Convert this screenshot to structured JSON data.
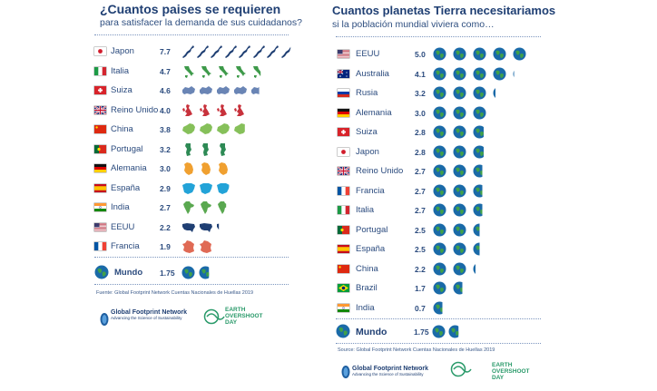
{
  "colors": {
    "title": "#1f3f73",
    "earth_ocean": "#1a6aa8",
    "earth_land": "#3fa04a",
    "japan": "#1f3f73",
    "italy": "#3e9a4a",
    "switzerland": "#6a85b5",
    "uk": "#c8323c",
    "china": "#86c05a",
    "portugal": "#2e8a55",
    "germany": "#f0a030",
    "spain": "#23a3d8",
    "india": "#5aa850",
    "usa": "#1f3f73",
    "france": "#e06a55",
    "eod_green": "#2a9a6a"
  },
  "left": {
    "title": "¿Cuantos paises se requieren",
    "subtitle": "para satisfacer la demanda de sus cuidadanos?",
    "rows": [
      {
        "country": "Japon",
        "value": "7.7",
        "flag": "jp",
        "icon": "japan-icon",
        "color": "japan"
      },
      {
        "country": "Italia",
        "value": "4.7",
        "flag": "it",
        "icon": "italy-icon",
        "color": "italy"
      },
      {
        "country": "Suiza",
        "value": "4.6",
        "flag": "ch",
        "icon": "switzerland-icon",
        "color": "switzerland"
      },
      {
        "country": "Reino Unido",
        "value": "4.0",
        "flag": "gb",
        "icon": "uk-icon",
        "color": "uk"
      },
      {
        "country": "China",
        "value": "3.8",
        "flag": "cn",
        "icon": "china-icon",
        "color": "china"
      },
      {
        "country": "Portugal",
        "value": "3.2",
        "flag": "pt",
        "icon": "portugal-icon",
        "color": "portugal"
      },
      {
        "country": "Alemania",
        "value": "3.0",
        "flag": "de",
        "icon": "germany-icon",
        "color": "germany"
      },
      {
        "country": "España",
        "value": "2.9",
        "flag": "es",
        "icon": "spain-icon",
        "color": "spain"
      },
      {
        "country": "India",
        "value": "2.7",
        "flag": "in",
        "icon": "india-icon",
        "color": "india"
      },
      {
        "country": "EEUU",
        "value": "2.2",
        "flag": "us",
        "icon": "usa-icon",
        "color": "usa"
      },
      {
        "country": "Francia",
        "value": "1.9",
        "flag": "fr",
        "icon": "france-icon",
        "color": "france"
      }
    ],
    "world": {
      "country": "Mundo",
      "value": "1.75"
    },
    "source": "Fuente: Global Footprint Network Cuentas Nacionales de Huellas 2019",
    "gfn_name": "Global Footprint Network",
    "gfn_tagline": "Advancing the Science of Sustainability",
    "eod_line1": "EARTH",
    "eod_line2": "OVERSHOOT",
    "eod_line3": "DAY"
  },
  "right": {
    "title": "Cuantos planetas Tierra necesitariamos",
    "subtitle": "si la población mundial viviera como…",
    "rows": [
      {
        "country": "EEUU",
        "value": "5.0",
        "flag": "us"
      },
      {
        "country": "Australia",
        "value": "4.1",
        "flag": "au"
      },
      {
        "country": "Rusia",
        "value": "3.2",
        "flag": "ru"
      },
      {
        "country": "Alemania",
        "value": "3.0",
        "flag": "de"
      },
      {
        "country": "Suiza",
        "value": "2.8",
        "flag": "ch"
      },
      {
        "country": "Japon",
        "value": "2.8",
        "flag": "jp"
      },
      {
        "country": "Reino Unido",
        "value": "2.7",
        "flag": "gb"
      },
      {
        "country": "Francia",
        "value": "2.7",
        "flag": "fr"
      },
      {
        "country": "Italia",
        "value": "2.7",
        "flag": "it"
      },
      {
        "country": "Portugal",
        "value": "2.5",
        "flag": "pt"
      },
      {
        "country": "España",
        "value": "2.5",
        "flag": "es"
      },
      {
        "country": "China",
        "value": "2.2",
        "flag": "cn"
      },
      {
        "country": "Brazil",
        "value": "1.7",
        "flag": "br"
      },
      {
        "country": "India",
        "value": "0.7",
        "flag": "in"
      }
    ],
    "world": {
      "country": "Mundo",
      "value": "1.75"
    },
    "source": "Source: Global Footprint Network Cuentas Nacionales de Huellas 2019",
    "gfn_name": "Global Footprint Network",
    "gfn_tagline": "Advancing the Science of Sustainability",
    "eod_line1": "EARTH",
    "eod_line2": "OVERSHOOT",
    "eod_line3": "DAY"
  },
  "chart_data": [
    {
      "type": "bar",
      "title": "¿Cuantos paises se requieren",
      "subtitle": "para satisfacer la demanda de sus cuidadanos?",
      "categories": [
        "Japon",
        "Italia",
        "Suiza",
        "Reino Unido",
        "China",
        "Portugal",
        "Alemania",
        "España",
        "India",
        "EEUU",
        "Francia",
        "Mundo"
      ],
      "values": [
        7.7,
        4.7,
        4.6,
        4.0,
        3.8,
        3.2,
        3.0,
        2.9,
        2.7,
        2.2,
        1.9,
        1.75
      ]
    },
    {
      "type": "bar",
      "title": "Cuantos planetas Tierra necesitariamos",
      "subtitle": "si la población mundial viviera como…",
      "categories": [
        "EEUU",
        "Australia",
        "Rusia",
        "Alemania",
        "Suiza",
        "Japon",
        "Reino Unido",
        "Francia",
        "Italia",
        "Portugal",
        "España",
        "China",
        "Brazil",
        "India",
        "Mundo"
      ],
      "values": [
        5.0,
        4.1,
        3.2,
        3.0,
        2.8,
        2.8,
        2.7,
        2.7,
        2.7,
        2.5,
        2.5,
        2.2,
        1.7,
        0.7,
        1.75
      ]
    }
  ]
}
